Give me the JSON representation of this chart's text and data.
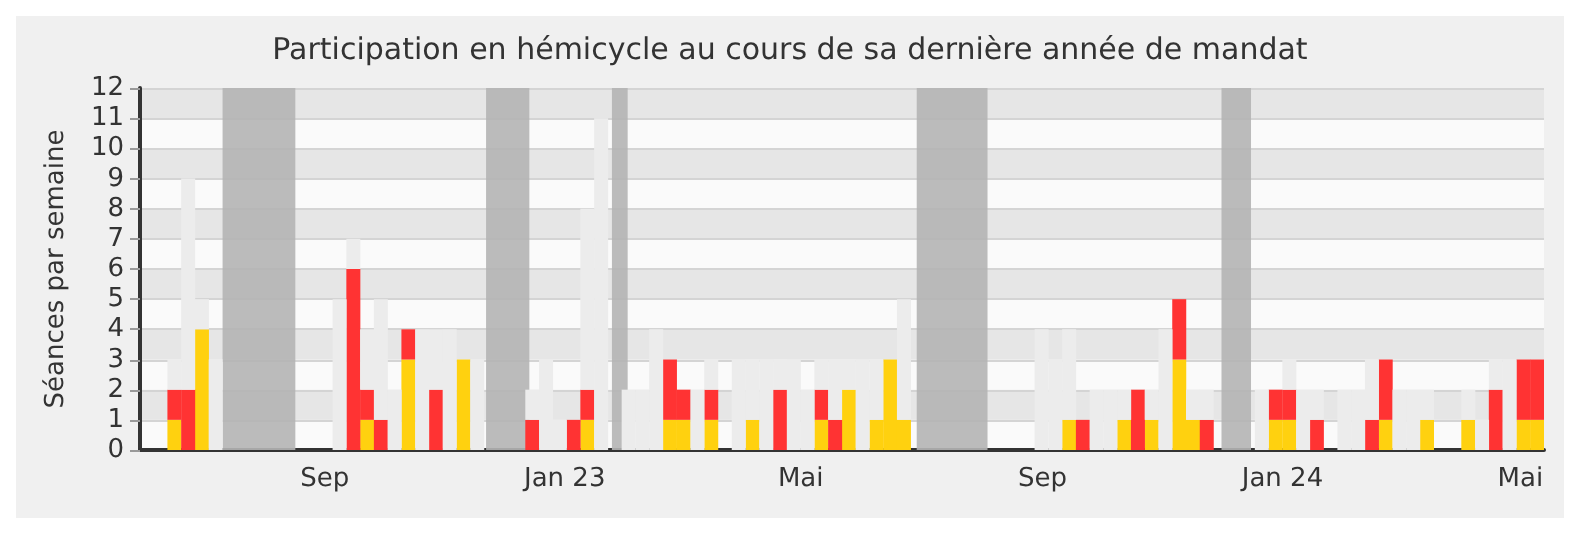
{
  "chart_data": {
    "type": "bar",
    "title": "Participation en hémicycle au cours de sa dernière année de mandat",
    "ylabel": "Séances par semaine",
    "stacked": true,
    "x": [
      "2022-06-02",
      "2022-06-09",
      "2022-06-16",
      "2022-06-23",
      "2022-06-30",
      "2022-07-07",
      "2022-07-14",
      "2022-07-21",
      "2022-07-28",
      "2022-08-04",
      "2022-08-11",
      "2022-08-18",
      "2022-08-25",
      "2022-09-01",
      "2022-09-08",
      "2022-09-15",
      "2022-09-22",
      "2022-09-29",
      "2022-10-06",
      "2022-10-13",
      "2022-10-20",
      "2022-10-27",
      "2022-11-03",
      "2022-11-10",
      "2022-11-17",
      "2022-11-24",
      "2022-12-01",
      "2022-12-08",
      "2022-12-15",
      "2022-12-22",
      "2022-12-29",
      "2023-01-05",
      "2023-01-12",
      "2023-01-19",
      "2023-01-26",
      "2023-02-02",
      "2023-02-09",
      "2023-02-16",
      "2023-02-23",
      "2023-03-02",
      "2023-03-09",
      "2023-03-16",
      "2023-03-23",
      "2023-03-30",
      "2023-04-06",
      "2023-04-13",
      "2023-04-20",
      "2023-04-27",
      "2023-05-04",
      "2023-05-11",
      "2023-05-18",
      "2023-05-25",
      "2023-06-01",
      "2023-06-08",
      "2023-06-15",
      "2023-06-22",
      "2023-06-29",
      "2023-07-06",
      "2023-07-13",
      "2023-07-20",
      "2023-07-27",
      "2023-08-03",
      "2023-08-10",
      "2023-08-17",
      "2023-08-24",
      "2023-08-31",
      "2023-09-07",
      "2023-09-14",
      "2023-09-21",
      "2023-09-28",
      "2023-10-05",
      "2023-10-12",
      "2023-10-19",
      "2023-10-26",
      "2023-11-02",
      "2023-11-09",
      "2023-11-16",
      "2023-11-23",
      "2023-11-30",
      "2023-12-07",
      "2023-12-14",
      "2023-12-21",
      "2023-12-28",
      "2024-01-04",
      "2024-01-11",
      "2024-01-18",
      "2024-01-25",
      "2024-02-01",
      "2024-02-08",
      "2024-02-15",
      "2024-02-22",
      "2024-02-29",
      "2024-03-07",
      "2024-03-14",
      "2024-03-21",
      "2024-03-28",
      "2024-04-04",
      "2024-04-11",
      "2024-04-18",
      "2024-04-25",
      "2024-05-02",
      "2024-05-09"
    ],
    "series": [
      {
        "color": "#ffd10f",
        "values": [
          0,
          0,
          1,
          0,
          4,
          0,
          0,
          0,
          0,
          0,
          0,
          0,
          0,
          0,
          0,
          0,
          1,
          0,
          0,
          3,
          0,
          0,
          0,
          3,
          0,
          0,
          0,
          0,
          0,
          0,
          0,
          0,
          1,
          0,
          0,
          0,
          0,
          0,
          1,
          1,
          0,
          1,
          0,
          0,
          1,
          0,
          0,
          0,
          0,
          1,
          0,
          2,
          0,
          1,
          3,
          1,
          0,
          0,
          0,
          0,
          0,
          0,
          0,
          0,
          0,
          0,
          0,
          1,
          0,
          0,
          0,
          1,
          0,
          1,
          0,
          3,
          1,
          0,
          0,
          0,
          0,
          0,
          1,
          1,
          0,
          0,
          0,
          0,
          0,
          0,
          1,
          0,
          0,
          1,
          0,
          0,
          1,
          0,
          0,
          0,
          1,
          1
        ]
      },
      {
        "color": "#ff3333",
        "values": [
          0,
          0,
          1,
          2,
          0,
          0,
          0,
          0,
          0,
          0,
          0,
          0,
          0,
          0,
          0,
          6,
          1,
          1,
          0,
          1,
          0,
          2,
          0,
          0,
          0,
          0,
          0,
          0,
          1,
          0,
          0,
          1,
          1,
          0,
          0,
          0,
          0,
          0,
          2,
          1,
          0,
          1,
          0,
          0,
          0,
          0,
          2,
          0,
          0,
          1,
          1,
          0,
          0,
          0,
          0,
          0,
          0,
          0,
          0,
          0,
          0,
          0,
          0,
          0,
          0,
          0,
          0,
          0,
          1,
          0,
          0,
          0,
          2,
          0,
          0,
          2,
          0,
          1,
          0,
          0,
          0,
          0,
          1,
          1,
          0,
          1,
          0,
          0,
          0,
          1,
          2,
          0,
          0,
          0,
          0,
          0,
          0,
          0,
          2,
          0,
          2,
          2
        ]
      },
      {
        "color": "#ececec",
        "values": [
          0,
          0,
          1,
          7,
          1,
          3,
          0,
          0,
          0,
          0,
          0,
          0,
          0,
          0,
          5,
          1,
          2,
          4,
          2,
          0,
          4,
          2,
          4,
          0,
          3,
          0,
          0,
          0,
          1,
          3,
          1,
          0,
          6,
          11,
          0,
          2,
          2,
          4,
          0,
          0,
          2,
          1,
          0,
          3,
          2,
          3,
          1,
          3,
          2,
          1,
          2,
          1,
          3,
          2,
          0,
          4,
          0,
          0,
          0,
          0,
          0,
          0,
          0,
          0,
          0,
          4,
          3,
          3,
          0,
          2,
          2,
          1,
          0,
          1,
          4,
          0,
          1,
          1,
          0,
          0,
          0,
          2,
          0,
          1,
          2,
          1,
          0,
          2,
          2,
          2,
          0,
          2,
          2,
          1,
          0,
          0,
          1,
          1,
          1,
          3,
          0,
          0
        ]
      }
    ],
    "xlim": [
      "2022-05-30",
      "2024-05-13"
    ],
    "xticks": [
      {
        "value": "2022-09-01",
        "label": "Sep"
      },
      {
        "value": "2023-01-01",
        "label": "Jan 23"
      },
      {
        "value": "2023-05-01",
        "label": "Mai"
      },
      {
        "value": "2023-09-01",
        "label": "Sep"
      },
      {
        "value": "2024-01-01",
        "label": "Jan 24"
      },
      {
        "value": "2024-05-01",
        "label": "Mai"
      }
    ],
    "ylim": [
      0,
      12
    ],
    "yticks": [
      0,
      1,
      2,
      3,
      4,
      5,
      6,
      7,
      8,
      9,
      10,
      11,
      12
    ],
    "bands": [
      {
        "axis": "x",
        "from": "2022-07-11",
        "to": "2022-08-17",
        "color": "#b4b4b4"
      },
      {
        "axis": "x",
        "from": "2022-11-22",
        "to": "2022-12-14",
        "color": "#b4b4b4"
      },
      {
        "axis": "x",
        "from": "2023-01-25",
        "to": "2023-02-02",
        "color": "#b4b4b4"
      },
      {
        "axis": "x",
        "from": "2023-06-29",
        "to": "2023-08-04",
        "color": "#b4b4b4"
      },
      {
        "axis": "x",
        "from": "2023-12-01",
        "to": "2023-12-16",
        "color": "#b4b4b4"
      }
    ],
    "grid": "y"
  }
}
